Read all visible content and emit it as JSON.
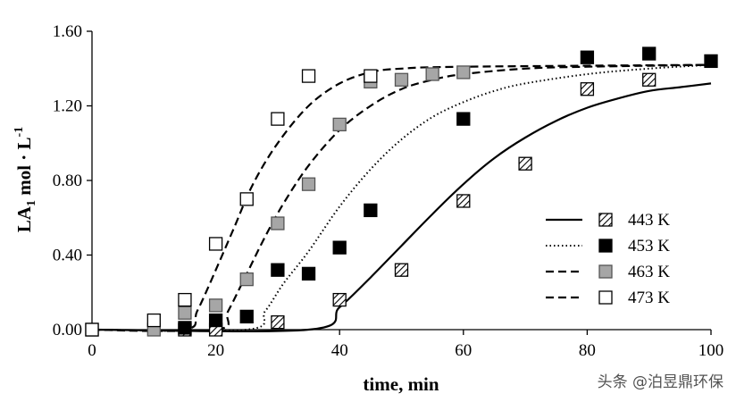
{
  "chart_data": {
    "type": "scatter",
    "title": "",
    "xlabel": "time, min",
    "ylabel_main": "LA",
    "ylabel_sub": "1",
    "ylabel_rest": " mol · L",
    "ylabel_sup": "-1",
    "xlim": [
      0,
      100
    ],
    "ylim": [
      0,
      1.6
    ],
    "xticks": [
      0,
      20,
      40,
      60,
      80,
      100
    ],
    "yticks": [
      0,
      0.4,
      0.8,
      1.2,
      1.6
    ],
    "xtick_labels": [
      "0",
      "20",
      "40",
      "60",
      "80",
      "100"
    ],
    "ytick_labels": [
      "0.00",
      "0.40",
      "0.80",
      "1.20",
      "1.60"
    ],
    "grid": false,
    "legend_position": "bottom-right",
    "series": [
      {
        "name": "443 K",
        "marker": "hatched",
        "line": "solid",
        "points": [
          [
            0,
            0
          ],
          [
            15,
            0
          ],
          [
            20,
            0
          ],
          [
            30,
            0.04
          ],
          [
            40,
            0.16
          ],
          [
            50,
            0.32
          ],
          [
            60,
            0.69
          ],
          [
            70,
            0.89
          ],
          [
            80,
            1.29
          ],
          [
            90,
            1.34
          ]
        ],
        "curve": [
          [
            0,
            0
          ],
          [
            35,
            0
          ],
          [
            40,
            0.12
          ],
          [
            45,
            0.28
          ],
          [
            50,
            0.45
          ],
          [
            55,
            0.62
          ],
          [
            60,
            0.78
          ],
          [
            65,
            0.92
          ],
          [
            70,
            1.03
          ],
          [
            75,
            1.12
          ],
          [
            80,
            1.19
          ],
          [
            85,
            1.24
          ],
          [
            90,
            1.28
          ],
          [
            95,
            1.3
          ],
          [
            100,
            1.32
          ]
        ]
      },
      {
        "name": "453 K",
        "marker": "black",
        "line": "dotted",
        "points": [
          [
            15,
            0.01
          ],
          [
            20,
            0.05
          ],
          [
            25,
            0.07
          ],
          [
            30,
            0.32
          ],
          [
            35,
            0.3
          ],
          [
            40,
            0.44
          ],
          [
            45,
            0.64
          ],
          [
            60,
            1.13
          ],
          [
            80,
            1.46
          ],
          [
            90,
            1.48
          ],
          [
            100,
            1.44
          ]
        ],
        "curve": [
          [
            0,
            0
          ],
          [
            25,
            0
          ],
          [
            28,
            0.1
          ],
          [
            31,
            0.25
          ],
          [
            35,
            0.42
          ],
          [
            40,
            0.66
          ],
          [
            45,
            0.86
          ],
          [
            50,
            1.02
          ],
          [
            55,
            1.14
          ],
          [
            60,
            1.22
          ],
          [
            65,
            1.28
          ],
          [
            70,
            1.32
          ],
          [
            80,
            1.37
          ],
          [
            90,
            1.4
          ],
          [
            100,
            1.42
          ]
        ]
      },
      {
        "name": "463 K",
        "marker": "gray",
        "line": "dashed",
        "points": [
          [
            10,
            0
          ],
          [
            15,
            0.09
          ],
          [
            20,
            0.13
          ],
          [
            25,
            0.27
          ],
          [
            30,
            0.57
          ],
          [
            35,
            0.78
          ],
          [
            40,
            1.1
          ],
          [
            45,
            1.33
          ],
          [
            50,
            1.34
          ],
          [
            55,
            1.37
          ],
          [
            60,
            1.38
          ]
        ],
        "curve": [
          [
            0,
            0
          ],
          [
            20,
            0
          ],
          [
            22,
            0.1
          ],
          [
            25,
            0.3
          ],
          [
            28,
            0.5
          ],
          [
            31,
            0.68
          ],
          [
            35,
            0.88
          ],
          [
            40,
            1.07
          ],
          [
            45,
            1.2
          ],
          [
            50,
            1.29
          ],
          [
            55,
            1.34
          ],
          [
            60,
            1.37
          ],
          [
            70,
            1.4
          ],
          [
            80,
            1.41
          ],
          [
            100,
            1.42
          ]
        ]
      },
      {
        "name": "473 K",
        "marker": "white",
        "line": "dashed",
        "points": [
          [
            0,
            0
          ],
          [
            10,
            0.05
          ],
          [
            15,
            0.16
          ],
          [
            20,
            0.46
          ],
          [
            25,
            0.7
          ],
          [
            30,
            1.13
          ],
          [
            35,
            1.36
          ],
          [
            45,
            1.36
          ]
        ],
        "curve": [
          [
            0,
            0
          ],
          [
            15,
            0
          ],
          [
            17,
            0.1
          ],
          [
            20,
            0.32
          ],
          [
            23,
            0.55
          ],
          [
            26,
            0.78
          ],
          [
            30,
            1.0
          ],
          [
            35,
            1.2
          ],
          [
            40,
            1.32
          ],
          [
            45,
            1.38
          ],
          [
            50,
            1.4
          ],
          [
            60,
            1.41
          ],
          [
            100,
            1.42
          ]
        ]
      }
    ]
  },
  "watermark_text": "头条 @泊昱鼎环保"
}
